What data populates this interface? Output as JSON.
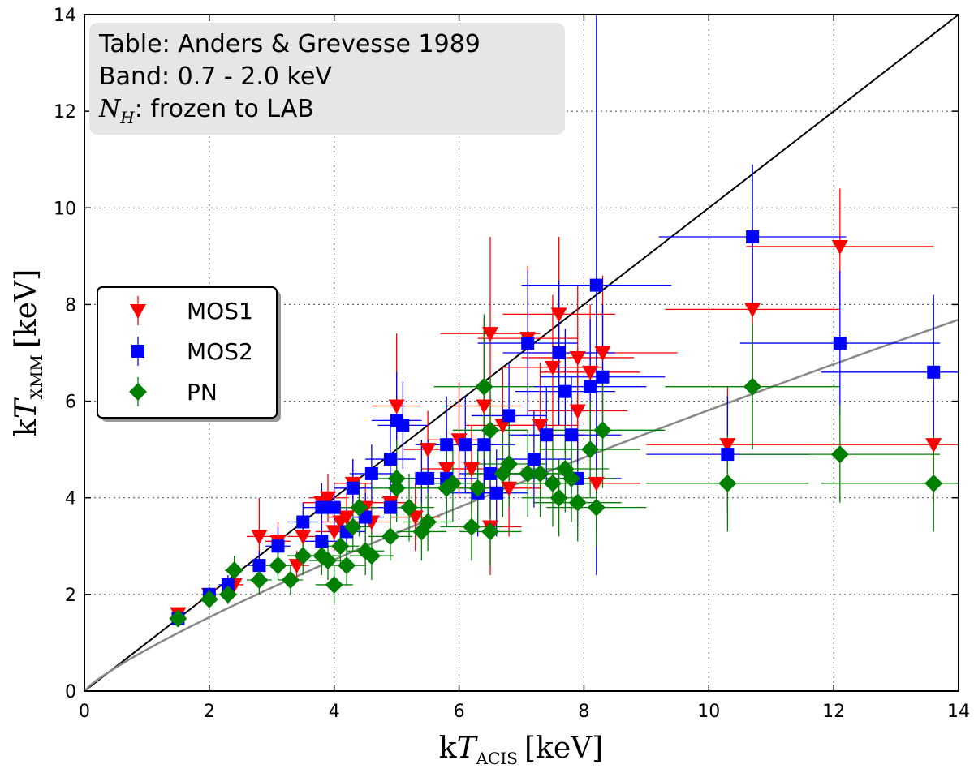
{
  "chart_data": {
    "type": "scatter",
    "annotation": {
      "line1": "Table: Anders & Grevesse 1989",
      "line2": "Band: 0.7 - 2.0 keV",
      "line3_symbol": "N",
      "line3_sub": "H",
      "line3_text": ": frozen to LAB"
    },
    "xlabel": {
      "prefix": "k",
      "var": "T",
      "sub": "ACIS",
      "unit": "[keV]"
    },
    "ylabel": {
      "prefix": "k",
      "var": "T",
      "sub": "XMM",
      "unit": "[keV]"
    },
    "xlim": [
      0,
      14
    ],
    "ylim": [
      0,
      14
    ],
    "xticks": [
      0,
      2,
      4,
      6,
      8,
      10,
      12,
      14
    ],
    "yticks": [
      0,
      2,
      4,
      6,
      8,
      10,
      12,
      14
    ],
    "grid": true,
    "legend_position": "middle-left",
    "reference_lines": [
      {
        "name": "one-to-one",
        "color": "#000000",
        "x": [
          0,
          14
        ],
        "y": [
          0,
          14
        ]
      },
      {
        "name": "best-fit",
        "color": "#888888",
        "formula": "y = 0.86 * x^0.83"
      }
    ],
    "series": [
      {
        "name": "MOS1",
        "marker": "triangle-down",
        "color": "#ff0000",
        "points": [
          [
            1.5,
            1.6,
            0.1,
            0.1
          ],
          [
            2.0,
            2.0,
            0.1,
            0.15
          ],
          [
            2.4,
            2.2,
            0.15,
            0.2
          ],
          [
            2.8,
            3.2,
            0.2,
            0.8
          ],
          [
            3.1,
            3.1,
            0.2,
            0.4
          ],
          [
            3.4,
            2.6,
            0.2,
            0.3
          ],
          [
            3.5,
            3.2,
            0.25,
            0.3
          ],
          [
            3.8,
            3.9,
            0.3,
            0.4
          ],
          [
            3.9,
            4.0,
            0.3,
            0.5
          ],
          [
            4.0,
            3.3,
            0.3,
            0.4
          ],
          [
            4.1,
            3.5,
            0.3,
            0.4
          ],
          [
            4.2,
            3.6,
            0.3,
            0.5
          ],
          [
            4.3,
            4.3,
            0.3,
            0.5
          ],
          [
            4.5,
            3.8,
            0.3,
            0.5
          ],
          [
            4.6,
            3.5,
            0.3,
            0.4
          ],
          [
            4.9,
            3.9,
            0.3,
            0.6
          ],
          [
            5.0,
            5.9,
            0.4,
            1.5
          ],
          [
            5.3,
            3.6,
            0.4,
            0.7
          ],
          [
            5.5,
            5.0,
            0.4,
            0.8
          ],
          [
            5.8,
            4.6,
            0.4,
            0.8
          ],
          [
            6.0,
            5.2,
            0.5,
            1.2
          ],
          [
            6.2,
            4.6,
            0.5,
            0.9
          ],
          [
            6.4,
            5.9,
            0.6,
            1.8
          ],
          [
            6.5,
            7.4,
            0.8,
            2.0
          ],
          [
            6.5,
            3.4,
            0.5,
            1.0
          ],
          [
            6.7,
            5.5,
            0.6,
            1.2
          ],
          [
            6.8,
            4.2,
            0.5,
            1.0
          ],
          [
            7.1,
            7.3,
            0.8,
            1.5
          ],
          [
            7.3,
            5.5,
            0.6,
            1.3
          ],
          [
            7.5,
            6.7,
            0.8,
            1.5
          ],
          [
            7.6,
            7.8,
            0.9,
            1.6
          ],
          [
            7.9,
            6.9,
            0.9,
            1.5
          ],
          [
            7.9,
            5.8,
            0.8,
            1.3
          ],
          [
            8.1,
            6.6,
            0.8,
            1.4
          ],
          [
            8.2,
            4.3,
            0.7,
            1.0
          ],
          [
            8.3,
            7.0,
            1.2,
            1.6
          ],
          [
            10.3,
            5.1,
            1.3,
            1.2
          ],
          [
            10.7,
            7.9,
            1.4,
            1.6
          ],
          [
            12.1,
            9.2,
            1.5,
            1.2
          ],
          [
            13.6,
            5.1,
            2.0,
            1.2
          ]
        ]
      },
      {
        "name": "MOS2",
        "marker": "square",
        "color": "#0000ff",
        "points": [
          [
            1.5,
            1.5,
            0.1,
            0.1
          ],
          [
            2.0,
            2.0,
            0.1,
            0.15
          ],
          [
            2.3,
            2.2,
            0.15,
            0.2
          ],
          [
            2.8,
            2.6,
            0.2,
            0.3
          ],
          [
            3.1,
            3.0,
            0.2,
            0.4
          ],
          [
            3.5,
            3.5,
            0.25,
            0.4
          ],
          [
            3.8,
            3.8,
            0.3,
            0.5
          ],
          [
            3.8,
            3.1,
            0.3,
            0.4
          ],
          [
            4.0,
            3.8,
            0.3,
            0.5
          ],
          [
            4.2,
            3.3,
            0.3,
            0.5
          ],
          [
            4.3,
            4.2,
            0.3,
            0.6
          ],
          [
            4.5,
            3.6,
            0.3,
            0.5
          ],
          [
            4.6,
            4.5,
            0.35,
            0.6
          ],
          [
            4.9,
            3.8,
            0.35,
            0.6
          ],
          [
            4.9,
            4.8,
            0.4,
            0.7
          ],
          [
            5.0,
            5.6,
            0.4,
            1.0
          ],
          [
            5.1,
            5.5,
            0.4,
            0.9
          ],
          [
            5.4,
            4.4,
            0.4,
            0.8
          ],
          [
            5.5,
            4.4,
            0.4,
            0.8
          ],
          [
            5.8,
            4.4,
            0.5,
            0.8
          ],
          [
            5.8,
            5.1,
            0.5,
            1.0
          ],
          [
            6.1,
            5.1,
            0.5,
            1.0
          ],
          [
            6.3,
            4.1,
            0.5,
            0.9
          ],
          [
            6.4,
            5.1,
            0.5,
            1.0
          ],
          [
            6.5,
            4.5,
            0.5,
            0.9
          ],
          [
            6.6,
            4.1,
            0.5,
            0.9
          ],
          [
            6.8,
            5.7,
            0.6,
            1.1
          ],
          [
            7.1,
            7.2,
            0.8,
            1.5
          ],
          [
            7.2,
            4.8,
            0.6,
            1.0
          ],
          [
            7.4,
            5.3,
            0.6,
            1.0
          ],
          [
            7.6,
            7.0,
            0.9,
            1.5
          ],
          [
            7.7,
            6.2,
            0.8,
            1.3
          ],
          [
            7.8,
            5.3,
            0.8,
            1.2
          ],
          [
            7.9,
            4.4,
            0.7,
            1.0
          ],
          [
            8.1,
            6.3,
            0.9,
            1.4
          ],
          [
            8.2,
            8.4,
            1.2,
            6.0
          ],
          [
            8.3,
            6.5,
            1.0,
            1.5
          ],
          [
            10.3,
            4.9,
            1.3,
            1.2
          ],
          [
            10.7,
            9.4,
            1.5,
            1.5
          ],
          [
            12.1,
            7.2,
            1.6,
            1.5
          ],
          [
            13.6,
            6.6,
            1.8,
            1.6
          ]
        ]
      },
      {
        "name": "PN",
        "marker": "diamond",
        "color": "#008000",
        "points": [
          [
            1.5,
            1.5,
            0.1,
            0.1
          ],
          [
            2.0,
            1.9,
            0.1,
            0.15
          ],
          [
            2.3,
            2.0,
            0.15,
            0.2
          ],
          [
            2.4,
            2.5,
            0.15,
            0.3
          ],
          [
            2.8,
            2.3,
            0.2,
            0.3
          ],
          [
            3.1,
            2.6,
            0.2,
            0.3
          ],
          [
            3.3,
            2.3,
            0.2,
            0.3
          ],
          [
            3.5,
            2.8,
            0.25,
            0.4
          ],
          [
            3.8,
            2.8,
            0.3,
            0.4
          ],
          [
            3.9,
            2.7,
            0.3,
            0.4
          ],
          [
            4.0,
            2.2,
            0.3,
            0.4
          ],
          [
            4.1,
            3.0,
            0.3,
            0.4
          ],
          [
            4.2,
            2.6,
            0.3,
            0.4
          ],
          [
            4.3,
            3.4,
            0.3,
            0.5
          ],
          [
            4.4,
            3.8,
            0.3,
            0.6
          ],
          [
            4.5,
            2.9,
            0.3,
            0.5
          ],
          [
            4.6,
            2.8,
            0.35,
            0.5
          ],
          [
            4.9,
            3.2,
            0.35,
            0.5
          ],
          [
            5.0,
            4.4,
            0.4,
            0.8
          ],
          [
            5.0,
            4.2,
            0.4,
            0.7
          ],
          [
            5.2,
            3.8,
            0.4,
            0.7
          ],
          [
            5.4,
            3.3,
            0.4,
            0.6
          ],
          [
            5.5,
            3.5,
            0.4,
            0.6
          ],
          [
            5.8,
            4.2,
            0.5,
            0.8
          ],
          [
            5.9,
            4.3,
            0.5,
            0.8
          ],
          [
            6.2,
            3.4,
            0.5,
            0.7
          ],
          [
            6.3,
            4.2,
            0.5,
            0.8
          ],
          [
            6.4,
            6.3,
            0.8,
            1.5
          ],
          [
            6.5,
            5.4,
            0.6,
            1.1
          ],
          [
            6.5,
            3.3,
            0.5,
            0.7
          ],
          [
            6.7,
            4.5,
            0.6,
            0.9
          ],
          [
            6.8,
            4.7,
            0.6,
            0.9
          ],
          [
            7.1,
            4.5,
            0.6,
            0.9
          ],
          [
            7.3,
            4.5,
            0.6,
            0.9
          ],
          [
            7.5,
            4.3,
            0.6,
            0.9
          ],
          [
            7.6,
            4.0,
            0.6,
            0.8
          ],
          [
            7.7,
            4.6,
            0.7,
            0.9
          ],
          [
            7.8,
            4.4,
            0.7,
            0.9
          ],
          [
            7.9,
            3.9,
            0.7,
            0.8
          ],
          [
            8.1,
            5.0,
            0.8,
            1.0
          ],
          [
            8.2,
            3.8,
            0.8,
            0.8
          ],
          [
            8.3,
            5.4,
            1.0,
            1.2
          ],
          [
            10.3,
            4.3,
            1.3,
            1.0
          ],
          [
            10.7,
            6.3,
            1.4,
            1.3
          ],
          [
            12.1,
            4.9,
            1.6,
            1.0
          ],
          [
            13.6,
            4.3,
            1.8,
            1.0
          ]
        ]
      }
    ]
  }
}
